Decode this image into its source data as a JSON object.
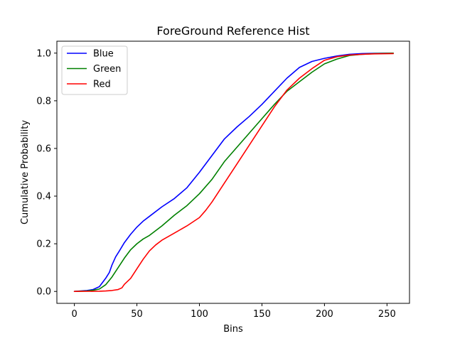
{
  "chart_data": {
    "type": "line",
    "title": "ForeGround Reference Hist",
    "xlabel": "Bins",
    "ylabel": "Cumulative Probability",
    "xlim": [
      -14,
      268
    ],
    "ylim": [
      -0.05,
      1.05
    ],
    "x_ticks": [
      0,
      50,
      100,
      150,
      200,
      250
    ],
    "y_ticks": [
      0.0,
      0.2,
      0.4,
      0.6,
      0.8,
      1.0
    ],
    "x_tick_labels": [
      "0",
      "50",
      "100",
      "150",
      "200",
      "250"
    ],
    "y_tick_labels": [
      "0.0",
      "0.2",
      "0.4",
      "0.6",
      "0.8",
      "1.0"
    ],
    "legend_position": "top-left",
    "grid": false,
    "series": [
      {
        "name": "Blue",
        "color": "#0000ff",
        "x": [
          0,
          10,
          15,
          20,
          25,
          28,
          30,
          33,
          36,
          40,
          45,
          50,
          55,
          60,
          70,
          80,
          90,
          100,
          110,
          120,
          130,
          140,
          150,
          160,
          170,
          180,
          190,
          200,
          210,
          220,
          230,
          240,
          255
        ],
        "y": [
          0.0,
          0.004,
          0.008,
          0.02,
          0.055,
          0.08,
          0.11,
          0.145,
          0.17,
          0.205,
          0.24,
          0.27,
          0.295,
          0.315,
          0.355,
          0.39,
          0.435,
          0.5,
          0.57,
          0.64,
          0.69,
          0.735,
          0.785,
          0.84,
          0.895,
          0.94,
          0.965,
          0.978,
          0.988,
          0.995,
          0.998,
          0.999,
          1.0
        ]
      },
      {
        "name": "Green",
        "color": "#008000",
        "x": [
          0,
          10,
          15,
          20,
          25,
          30,
          35,
          40,
          45,
          50,
          55,
          60,
          70,
          80,
          90,
          100,
          110,
          120,
          130,
          140,
          150,
          160,
          170,
          180,
          190,
          200,
          210,
          220,
          230,
          240,
          255
        ],
        "y": [
          0.0,
          0.002,
          0.005,
          0.01,
          0.028,
          0.06,
          0.1,
          0.14,
          0.175,
          0.2,
          0.22,
          0.235,
          0.275,
          0.32,
          0.36,
          0.41,
          0.47,
          0.545,
          0.605,
          0.665,
          0.725,
          0.785,
          0.84,
          0.88,
          0.92,
          0.955,
          0.975,
          0.99,
          0.995,
          0.998,
          1.0
        ]
      },
      {
        "name": "Red",
        "color": "#ff0000",
        "x": [
          0,
          20,
          25,
          30,
          35,
          38,
          40,
          45,
          50,
          55,
          60,
          65,
          70,
          80,
          90,
          100,
          105,
          110,
          120,
          130,
          140,
          150,
          160,
          170,
          180,
          190,
          200,
          210,
          220,
          230,
          240,
          255
        ],
        "y": [
          0.0,
          0.001,
          0.002,
          0.004,
          0.008,
          0.015,
          0.03,
          0.055,
          0.095,
          0.135,
          0.17,
          0.195,
          0.215,
          0.245,
          0.275,
          0.31,
          0.34,
          0.375,
          0.455,
          0.535,
          0.615,
          0.695,
          0.775,
          0.845,
          0.895,
          0.935,
          0.97,
          0.985,
          0.992,
          0.995,
          0.997,
          0.998
        ]
      }
    ]
  }
}
